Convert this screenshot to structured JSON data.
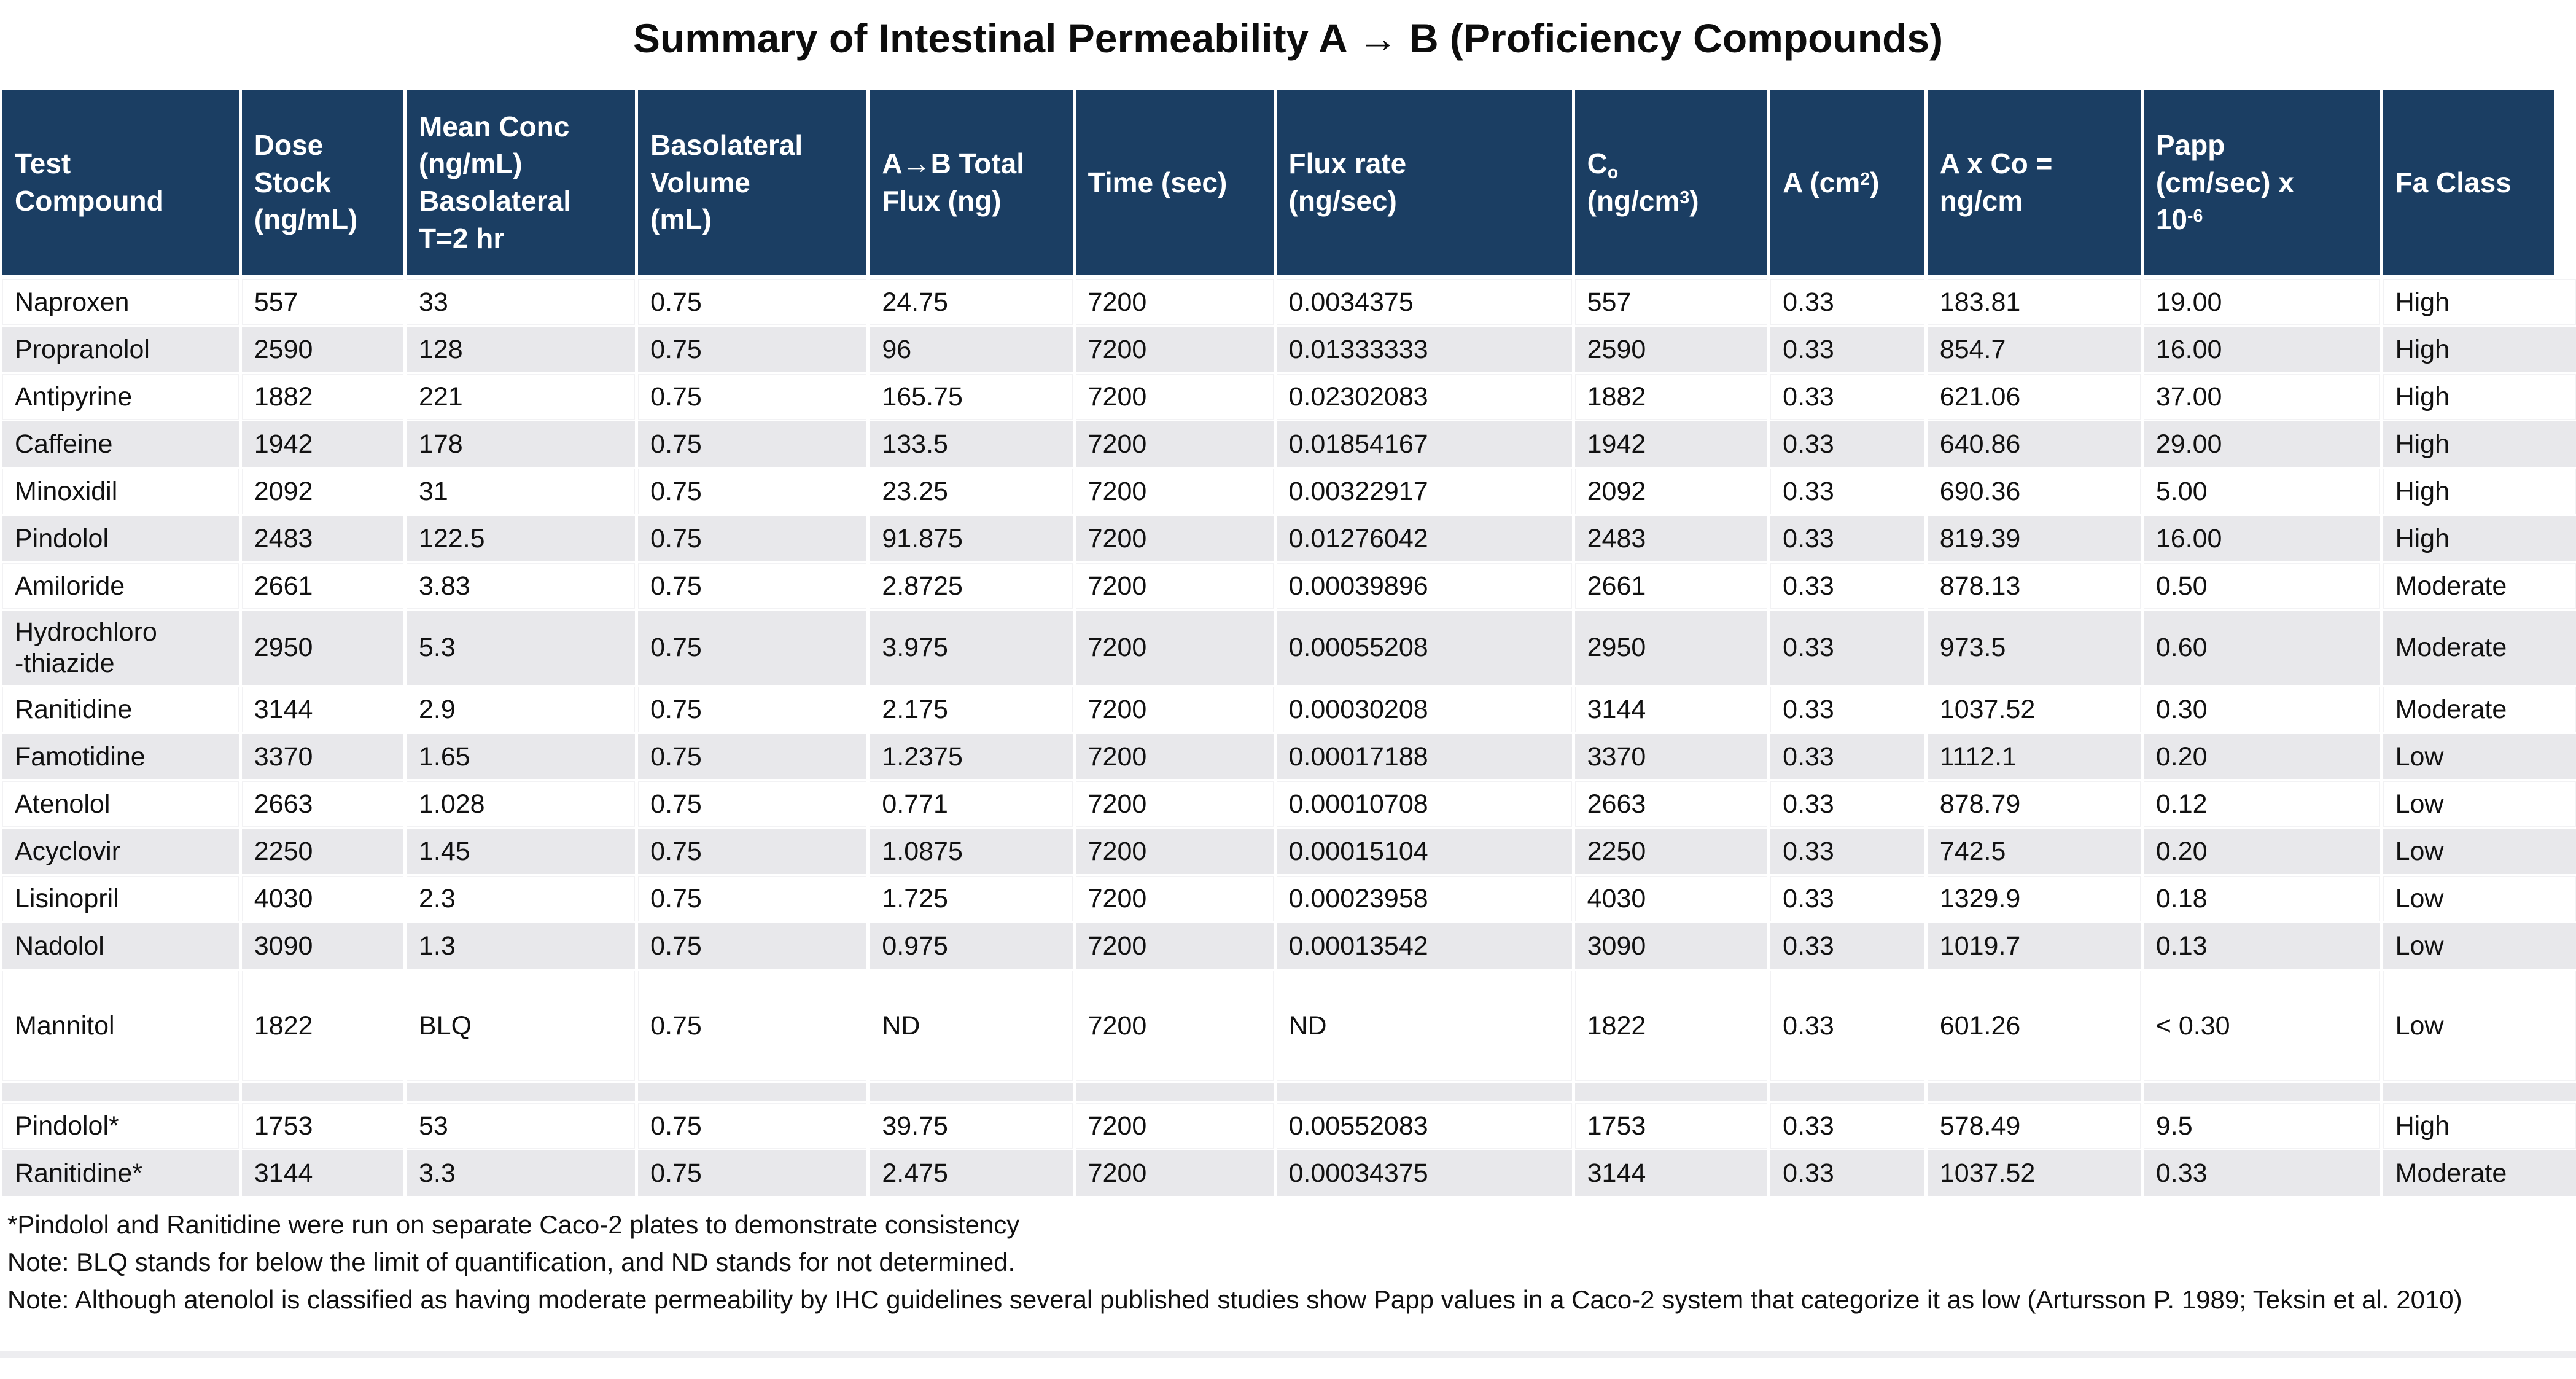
{
  "title": "Summary of Intestinal Permeability A → B (Proficiency Compounds)",
  "colors": {
    "header_bg": "#1b3e63",
    "stripe_row_bg": "#e8e8eb",
    "header_text": "#ffffff",
    "body_text": "#111111"
  },
  "table": {
    "columns": {
      "test_compound": "Test\nCompound",
      "dose_stock": "Dose\nStock\n(ng/mL)",
      "mean_conc": "Mean Conc\n(ng/mL)\nBasolateral\nT=2 hr",
      "baso_volume": "Basolateral\nVolume\n(mL)",
      "total_flux": "A→B Total\nFlux (ng)",
      "time": "Time (sec)",
      "flux_rate": "Flux rate\n(ng/sec)",
      "co": {
        "symbol": "C",
        "symbol_sub": "o",
        "unit_open": "(ng/cm",
        "unit_sup": "3",
        "unit_close": ")"
      },
      "area": {
        "prefix": "A (cm",
        "sup": "2",
        "suffix": ")"
      },
      "axco": "A x Co =\nng/cm",
      "papp": {
        "l1": "Papp",
        "l2": "(cm/sec) x",
        "l3": "10",
        "sup": "-6"
      },
      "fa_class": "Fa Class"
    },
    "row_meta": [
      {
        "shaded": false
      },
      {
        "shaded": true
      },
      {
        "shaded": false
      },
      {
        "shaded": true
      },
      {
        "shaded": false
      },
      {
        "shaded": true
      },
      {
        "shaded": false
      },
      {
        "shaded": true
      },
      {
        "shaded": false
      },
      {
        "shaded": true
      },
      {
        "shaded": false
      },
      {
        "shaded": true
      },
      {
        "shaded": false
      },
      {
        "shaded": true
      },
      {
        "shaded": false,
        "kind": "tall"
      },
      {
        "shaded": true,
        "kind": "spacer"
      },
      {
        "shaded": false
      },
      {
        "shaded": true
      }
    ]
  },
  "chart_data": {
    "type": "table",
    "title": "Summary of Intestinal Permeability A → B (Proficiency Compounds)",
    "columns": [
      "Test Compound",
      "Dose Stock (ng/mL)",
      "Mean Conc (ng/mL) Basolateral T=2 hr",
      "Basolateral Volume (mL)",
      "A→B Total Flux (ng)",
      "Time (sec)",
      "Flux rate (ng/sec)",
      "Co (ng/cm3)",
      "A (cm2)",
      "A x Co = ng/cm",
      "Papp (cm/sec) x 10-6",
      "Fa Class"
    ],
    "rows": [
      [
        "Naproxen",
        "557",
        "33",
        "0.75",
        "24.75",
        "7200",
        "0.0034375",
        "557",
        "0.33",
        "183.81",
        "19.00",
        "High"
      ],
      [
        "Propranolol",
        "2590",
        "128",
        "0.75",
        "96",
        "7200",
        "0.01333333",
        "2590",
        "0.33",
        "854.7",
        "16.00",
        "High"
      ],
      [
        "Antipyrine",
        "1882",
        "221",
        "0.75",
        "165.75",
        "7200",
        "0.02302083",
        "1882",
        "0.33",
        "621.06",
        "37.00",
        "High"
      ],
      [
        "Caffeine",
        "1942",
        "178",
        "0.75",
        "133.5",
        "7200",
        "0.01854167",
        "1942",
        "0.33",
        "640.86",
        "29.00",
        "High"
      ],
      [
        "Minoxidil",
        "2092",
        "31",
        "0.75",
        "23.25",
        "7200",
        "0.00322917",
        "2092",
        "0.33",
        "690.36",
        "5.00",
        "High"
      ],
      [
        "Pindolol",
        "2483",
        "122.5",
        "0.75",
        "91.875",
        "7200",
        "0.01276042",
        "2483",
        "0.33",
        "819.39",
        "16.00",
        "High"
      ],
      [
        "Amiloride",
        "2661",
        "3.83",
        "0.75",
        "2.8725",
        "7200",
        "0.00039896",
        "2661",
        "0.33",
        "878.13",
        "0.50",
        "Moderate"
      ],
      [
        "Hydrochloro\n-thiazide",
        "2950",
        "5.3",
        "0.75",
        "3.975",
        "7200",
        "0.00055208",
        "2950",
        "0.33",
        "973.5",
        "0.60",
        "Moderate"
      ],
      [
        "Ranitidine",
        "3144",
        "2.9",
        "0.75",
        "2.175",
        "7200",
        "0.00030208",
        "3144",
        "0.33",
        "1037.52",
        "0.30",
        "Moderate"
      ],
      [
        "Famotidine",
        "3370",
        "1.65",
        "0.75",
        "1.2375",
        "7200",
        "0.00017188",
        "3370",
        "0.33",
        "1112.1",
        "0.20",
        "Low"
      ],
      [
        "Atenolol",
        "2663",
        "1.028",
        "0.75",
        "0.771",
        "7200",
        "0.00010708",
        "2663",
        "0.33",
        "878.79",
        "0.12",
        "Low"
      ],
      [
        "Acyclovir",
        "2250",
        "1.45",
        "0.75",
        "1.0875",
        "7200",
        "0.00015104",
        "2250",
        "0.33",
        "742.5",
        "0.20",
        "Low"
      ],
      [
        "Lisinopril",
        "4030",
        "2.3",
        "0.75",
        "1.725",
        "7200",
        "0.00023958",
        "4030",
        "0.33",
        "1329.9",
        "0.18",
        "Low"
      ],
      [
        "Nadolol",
        "3090",
        "1.3",
        "0.75",
        "0.975",
        "7200",
        "0.00013542",
        "3090",
        "0.33",
        "1019.7",
        "0.13",
        "Low"
      ],
      [
        "Mannitol",
        "1822",
        "BLQ",
        "0.75",
        "ND",
        "7200",
        "ND",
        "1822",
        "0.33",
        "601.26",
        "< 0.30",
        "Low"
      ],
      [
        "Pindolol*",
        "1753",
        "53",
        "0.75",
        "39.75",
        "7200",
        "0.00552083",
        "1753",
        "0.33",
        "578.49",
        "9.5",
        "High"
      ],
      [
        "Ranitidine*",
        "3144",
        "3.3",
        "0.75",
        "2.475",
        "7200",
        "0.00034375",
        "3144",
        "0.33",
        "1037.52",
        "0.33",
        "Moderate"
      ]
    ]
  },
  "footnotes": [
    "*Pindolol and Ranitidine were run on separate Caco-2 plates to demonstrate consistency",
    "Note: BLQ stands for below the limit of quantification, and ND stands for not determined.",
    "Note: Although atenolol is classified as having moderate permeability by IHC guidelines several published studies show Papp values in a Caco-2 system that categorize it as low (Artursson P. 1989; Teksin et al. 2010)"
  ]
}
